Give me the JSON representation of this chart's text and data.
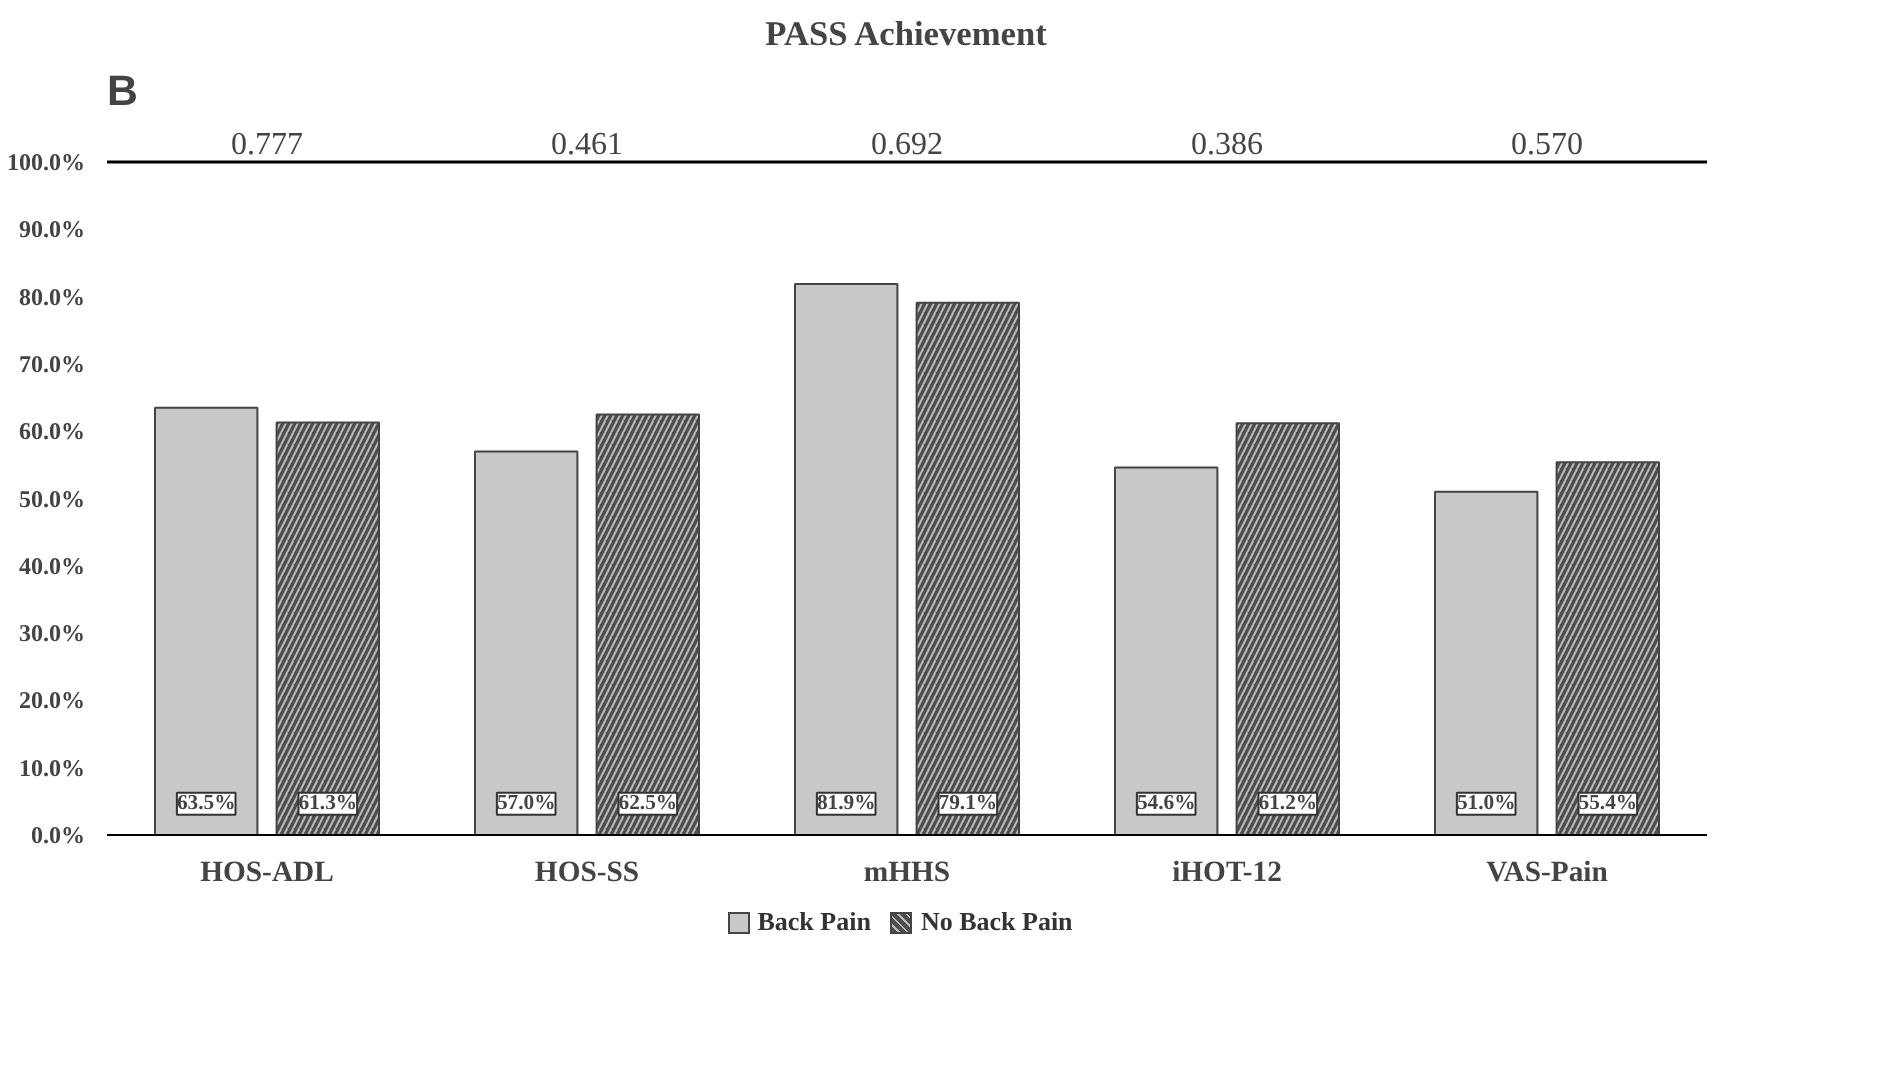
{
  "chart_data": {
    "type": "bar",
    "title": "PASS Achievement",
    "categories": [
      "HOS-ADL",
      "HOS-SS",
      "mHHS",
      "iHOT-12",
      "VAS-Pain"
    ],
    "series": [
      {
        "name": "Back Pain",
        "color": "#c8c8c8",
        "values": [
          63.5,
          57.0,
          81.9,
          54.6,
          51.0
        ],
        "value_labels": [
          "63.5%",
          "57.0%",
          "81.9%",
          "54.6%",
          "51.0%"
        ]
      },
      {
        "name": "No Back Pain",
        "color": "#4d4d4d",
        "values": [
          61.3,
          62.5,
          79.1,
          61.2,
          55.4
        ],
        "value_labels": [
          "61.3%",
          "62.5%",
          "79.1%",
          "61.2%",
          "55.4%"
        ]
      }
    ],
    "ylim": [
      0,
      100
    ],
    "yticks": [
      {
        "value": 0,
        "label": "0.0%"
      },
      {
        "value": 10,
        "label": "10.0%"
      },
      {
        "value": 20,
        "label": "20.0%"
      },
      {
        "value": 30,
        "label": "30.0%"
      },
      {
        "value": 40,
        "label": "40.0%"
      },
      {
        "value": 50,
        "label": "50.0%"
      },
      {
        "value": 60,
        "label": "60.0%"
      },
      {
        "value": 70,
        "label": "70.0%"
      },
      {
        "value": 80,
        "label": "80.0%"
      },
      {
        "value": 90,
        "label": "90.0%"
      },
      {
        "value": 100,
        "label": "100.0%"
      }
    ],
    "ref_lines": [
      {
        "axis": "y",
        "value": 100,
        "color": "#000000"
      }
    ],
    "annotations": [
      "B",
      {
        "text": "0.777",
        "x": "HOS-ADL",
        "y": 100
      },
      {
        "text": "0.461",
        "x": "HOS-SS",
        "y": 100
      },
      {
        "text": "0.692",
        "x": "mHHS",
        "y": 100
      },
      {
        "text": "0.386",
        "x": "iHOT-12",
        "y": 100
      },
      {
        "text": "0.570",
        "x": "VAS-Pain",
        "y": 100
      }
    ],
    "grid": false,
    "legend": "bottom"
  }
}
